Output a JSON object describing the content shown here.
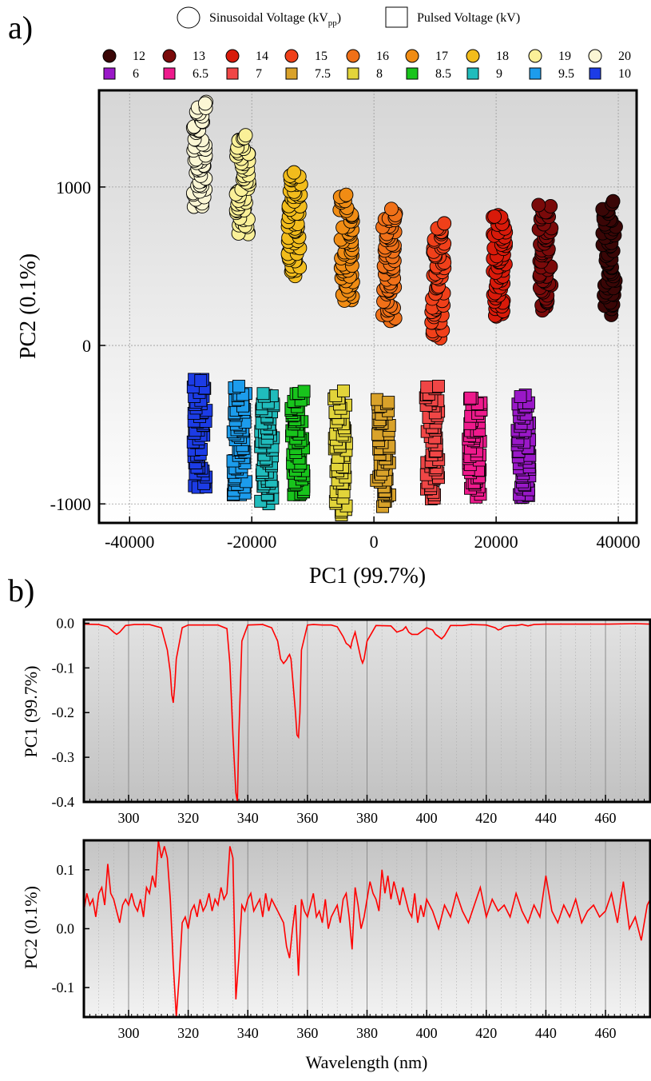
{
  "panel_labels": [
    "a)",
    "b)"
  ],
  "colors": {
    "sin": {
      "12": "#3a0606",
      "13": "#7a0a0a",
      "14": "#d81a0a",
      "15": "#f0401a",
      "16": "#f07018",
      "17": "#f08c14",
      "18": "#f2bc1c",
      "19": "#faf098",
      "20": "#fbf6d4"
    },
    "pul": {
      "6": "#9a18c8",
      "6.5": "#ee1a8c",
      "7": "#f04646",
      "7.5": "#d9a22a",
      "8": "#e2d43a",
      "8.5": "#18c41c",
      "9": "#20bcbc",
      "9.5": "#1c9cec",
      "10": "#1c3ce6"
    },
    "line": "#ff0000"
  },
  "chart_data": [
    {
      "type": "scatter",
      "title": "",
      "xlabel": "PC1 (99.7%)",
      "ylabel": "PC2 (0.1%)",
      "xlim": [
        -45000,
        43000
      ],
      "ylim": [
        -1120,
        1610
      ],
      "xticks": [
        "-40000",
        "-20000",
        "0",
        "20000",
        "40000"
      ],
      "yticks": [
        "-1000",
        "0",
        "1000"
      ],
      "grid": true,
      "legend_titles": [
        "Sinusoidal Voltage (kV",
        "pp",
        ")",
        "Pulsed Voltage (kV)"
      ],
      "legend_rows": [
        [
          "12",
          "13",
          "14",
          "15",
          "16",
          "17",
          "18",
          "19",
          "20"
        ],
        [
          "6",
          "6.5",
          "7",
          "7.5",
          "8",
          "8.5",
          "9",
          "9.5",
          "10"
        ]
      ],
      "series": [
        {
          "name": "12",
          "marker": "circle",
          "x": 38500,
          "y_range": [
            200,
            890
          ]
        },
        {
          "name": "13",
          "marker": "circle",
          "x": 28000,
          "y_range": [
            230,
            880
          ]
        },
        {
          "name": "14",
          "marker": "circle",
          "x": 20500,
          "y_range": [
            170,
            830
          ]
        },
        {
          "name": "15",
          "marker": "circle",
          "x": 10500,
          "y_range": [
            50,
            770
          ]
        },
        {
          "name": "16",
          "marker": "circle",
          "x": 2500,
          "y_range": [
            150,
            850
          ]
        },
        {
          "name": "17",
          "marker": "circle",
          "x": -4500,
          "y_range": [
            280,
            960
          ]
        },
        {
          "name": "18",
          "marker": "circle",
          "x": -13000,
          "y_range": [
            440,
            1100
          ]
        },
        {
          "name": "19",
          "marker": "circle",
          "x": -21500,
          "y_range": [
            700,
            1320
          ]
        },
        {
          "name": "20",
          "marker": "circle",
          "x": -28500,
          "y_range": [
            870,
            1530
          ]
        },
        {
          "name": "6",
          "marker": "square",
          "x": 24500,
          "y_range": [
            -970,
            -320
          ]
        },
        {
          "name": "6.5",
          "marker": "square",
          "x": 16500,
          "y_range": [
            -940,
            -330
          ]
        },
        {
          "name": "7",
          "marker": "square",
          "x": 9500,
          "y_range": [
            -960,
            -250
          ]
        },
        {
          "name": "7.5",
          "marker": "square",
          "x": 1500,
          "y_range": [
            -1000,
            -340
          ]
        },
        {
          "name": "8",
          "marker": "square",
          "x": -5500,
          "y_range": [
            -1060,
            -300
          ]
        },
        {
          "name": "8.5",
          "marker": "square",
          "x": -12500,
          "y_range": [
            -960,
            -300
          ]
        },
        {
          "name": "9",
          "marker": "square",
          "x": -17500,
          "y_range": [
            -990,
            -300
          ]
        },
        {
          "name": "9.5",
          "marker": "square",
          "x": -22000,
          "y_range": [
            -960,
            -270
          ]
        },
        {
          "name": "10",
          "marker": "square",
          "x": -28500,
          "y_range": [
            -900,
            -210
          ]
        }
      ]
    },
    {
      "type": "line",
      "title": "",
      "xlabel": "",
      "ylabel": "PC1 (99.7%)",
      "xlim": [
        285,
        475
      ],
      "ylim": [
        -0.4,
        0.008
      ],
      "xticks": [
        "300",
        "320",
        "340",
        "360",
        "380",
        "400",
        "420",
        "440",
        "460"
      ],
      "yticks": [
        "0.0",
        "-0.1",
        "-0.2",
        "-0.3",
        "-0.4"
      ],
      "grid": true,
      "series": [
        {
          "name": "",
          "x": [
            285,
            290,
            293,
            295,
            296,
            297,
            299,
            302,
            307,
            311,
            313,
            314,
            314.5,
            315,
            315.5,
            316,
            318,
            320,
            325,
            330,
            333,
            334,
            335,
            336,
            336.5,
            337,
            338,
            340,
            345,
            348,
            350,
            351,
            352,
            353,
            353.5,
            354,
            354.5,
            355,
            356,
            356.5,
            357,
            357.5,
            358,
            360,
            362,
            365,
            368,
            370,
            372,
            373,
            374,
            374.5,
            375,
            376,
            377,
            378,
            378.5,
            379,
            380,
            383,
            388,
            390,
            392,
            393,
            394,
            395,
            397,
            400,
            402,
            403,
            404,
            405,
            406,
            408,
            412,
            415,
            420,
            423,
            424,
            425,
            426,
            428,
            430,
            432,
            434,
            436,
            440,
            450,
            460,
            470,
            475
          ],
          "y": [
            -0.002,
            -0.003,
            -0.008,
            -0.02,
            -0.025,
            -0.02,
            -0.005,
            -0.003,
            -0.003,
            -0.01,
            -0.06,
            -0.11,
            -0.16,
            -0.178,
            -0.14,
            -0.08,
            -0.01,
            -0.004,
            -0.004,
            -0.004,
            -0.012,
            -0.09,
            -0.25,
            -0.38,
            -0.405,
            -0.25,
            -0.04,
            -0.004,
            -0.003,
            -0.01,
            -0.04,
            -0.08,
            -0.09,
            -0.082,
            -0.075,
            -0.07,
            -0.08,
            -0.12,
            -0.2,
            -0.25,
            -0.255,
            -0.2,
            -0.06,
            -0.004,
            -0.003,
            -0.004,
            -0.004,
            -0.008,
            -0.03,
            -0.045,
            -0.05,
            -0.055,
            -0.04,
            -0.02,
            -0.05,
            -0.08,
            -0.089,
            -0.08,
            -0.04,
            -0.005,
            -0.006,
            -0.02,
            -0.015,
            -0.008,
            -0.02,
            -0.025,
            -0.025,
            -0.01,
            -0.015,
            -0.025,
            -0.03,
            -0.035,
            -0.028,
            -0.005,
            -0.005,
            -0.003,
            -0.004,
            -0.01,
            -0.015,
            -0.013,
            -0.008,
            -0.005,
            -0.005,
            -0.003,
            -0.006,
            -0.003,
            -0.002,
            -0.002,
            -0.002,
            -0.001,
            -0.002
          ]
        }
      ]
    },
    {
      "type": "line",
      "title": "",
      "xlabel": "Wavelength (nm)",
      "ylabel": "PC2 (0.1%)",
      "xlim": [
        285,
        475
      ],
      "ylim": [
        -0.15,
        0.15
      ],
      "xticks": [
        "300",
        "320",
        "340",
        "360",
        "380",
        "400",
        "420",
        "440",
        "460"
      ],
      "yticks": [
        "0.1",
        "0.0",
        "-0.1"
      ],
      "grid": true,
      "series": [
        {
          "name": "",
          "x": [
            285,
            286,
            287,
            288,
            289,
            290,
            291,
            292,
            293,
            294,
            295,
            296,
            297,
            298,
            299,
            300,
            301,
            302,
            303,
            304,
            305,
            306,
            307,
            308,
            309,
            310,
            311,
            312,
            313,
            314,
            315,
            316,
            317,
            318,
            319,
            320,
            321,
            322,
            323,
            324,
            325,
            326,
            327,
            328,
            329,
            330,
            331,
            332,
            333,
            334,
            335,
            336,
            337,
            338,
            339,
            340,
            341,
            342,
            343,
            344,
            345,
            346,
            347,
            348,
            349,
            350,
            351,
            352,
            353,
            354,
            355,
            356,
            357,
            358,
            359,
            360,
            361,
            362,
            363,
            364,
            365,
            366,
            367,
            368,
            369,
            370,
            371,
            372,
            373,
            374,
            375,
            376,
            377,
            378,
            379,
            380,
            381,
            382,
            383,
            384,
            385,
            386,
            387,
            388,
            389,
            390,
            391,
            392,
            393,
            394,
            395,
            396,
            397,
            398,
            399,
            400,
            402,
            404,
            406,
            408,
            410,
            412,
            414,
            416,
            418,
            420,
            422,
            424,
            426,
            428,
            430,
            432,
            434,
            436,
            438,
            440,
            442,
            444,
            446,
            448,
            450,
            452,
            454,
            456,
            458,
            460,
            462,
            464,
            466,
            468,
            470,
            472,
            474,
            475
          ],
          "y": [
            0.03,
            0.06,
            0.04,
            0.05,
            0.02,
            0.06,
            0.07,
            0.04,
            0.11,
            0.06,
            0.05,
            0.03,
            0.01,
            0.04,
            0.05,
            0.04,
            0.06,
            0.04,
            0.03,
            0.05,
            0.02,
            0.07,
            0.06,
            0.09,
            0.07,
            0.15,
            0.12,
            0.14,
            0.12,
            0.05,
            -0.06,
            -0.15,
            -0.08,
            0.01,
            0.02,
            0.0,
            0.03,
            0.04,
            0.02,
            0.05,
            0.03,
            0.04,
            0.06,
            0.03,
            0.05,
            0.04,
            0.07,
            0.05,
            0.06,
            0.14,
            0.12,
            -0.12,
            -0.05,
            0.04,
            0.03,
            0.05,
            0.06,
            0.03,
            0.04,
            0.05,
            0.02,
            0.06,
            0.03,
            0.05,
            0.04,
            0.03,
            0.02,
            0.01,
            -0.03,
            -0.05,
            0.0,
            0.04,
            -0.08,
            0.05,
            0.03,
            0.02,
            0.04,
            0.06,
            0.02,
            0.03,
            0.01,
            0.05,
            0.0,
            0.02,
            0.03,
            0.04,
            0.01,
            0.05,
            0.06,
            0.02,
            -0.035,
            0.07,
            0.04,
            0.0,
            0.02,
            0.05,
            0.08,
            0.06,
            0.05,
            0.03,
            0.1,
            0.06,
            0.09,
            0.05,
            0.08,
            0.06,
            0.04,
            0.07,
            0.05,
            0.03,
            0.02,
            0.06,
            0.01,
            0.04,
            0.02,
            0.05,
            0.03,
            0.0,
            0.04,
            0.02,
            0.06,
            0.03,
            0.01,
            0.04,
            0.07,
            0.02,
            0.05,
            0.03,
            0.04,
            0.02,
            0.06,
            0.03,
            0.01,
            0.04,
            0.02,
            0.09,
            0.03,
            0.01,
            0.04,
            0.02,
            0.05,
            0.01,
            0.03,
            0.04,
            0.02,
            0.03,
            0.06,
            0.01,
            0.08,
            0.0,
            0.02,
            -0.02,
            0.04,
            0.05
          ]
        }
      ]
    }
  ]
}
